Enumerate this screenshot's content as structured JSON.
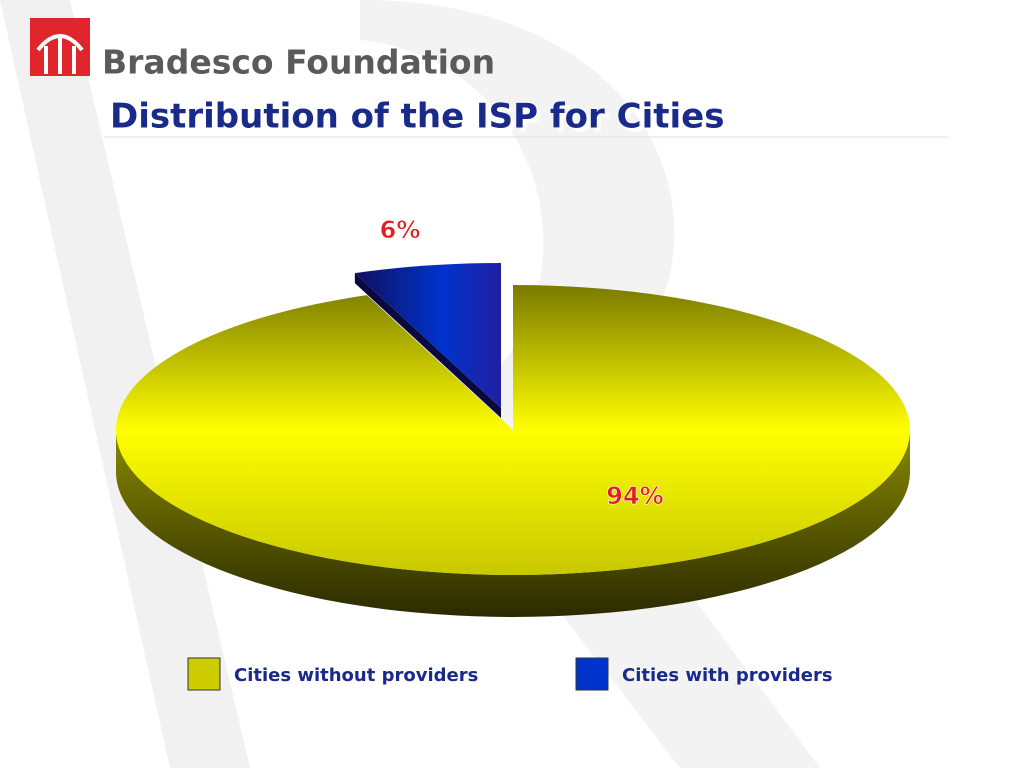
{
  "header": {
    "brand": "Bradesco Foundation"
  },
  "chart_data": {
    "type": "pie",
    "title": "Distribution of the ISP for Cities",
    "categories": [
      "Cities without providers",
      "Cities with providers"
    ],
    "values": [
      94,
      6
    ],
    "value_labels": [
      "94%",
      "6%"
    ],
    "colors": [
      "#cccc00",
      "#0033cc"
    ],
    "exploded": [
      false,
      true
    ],
    "legend": "bottom"
  }
}
